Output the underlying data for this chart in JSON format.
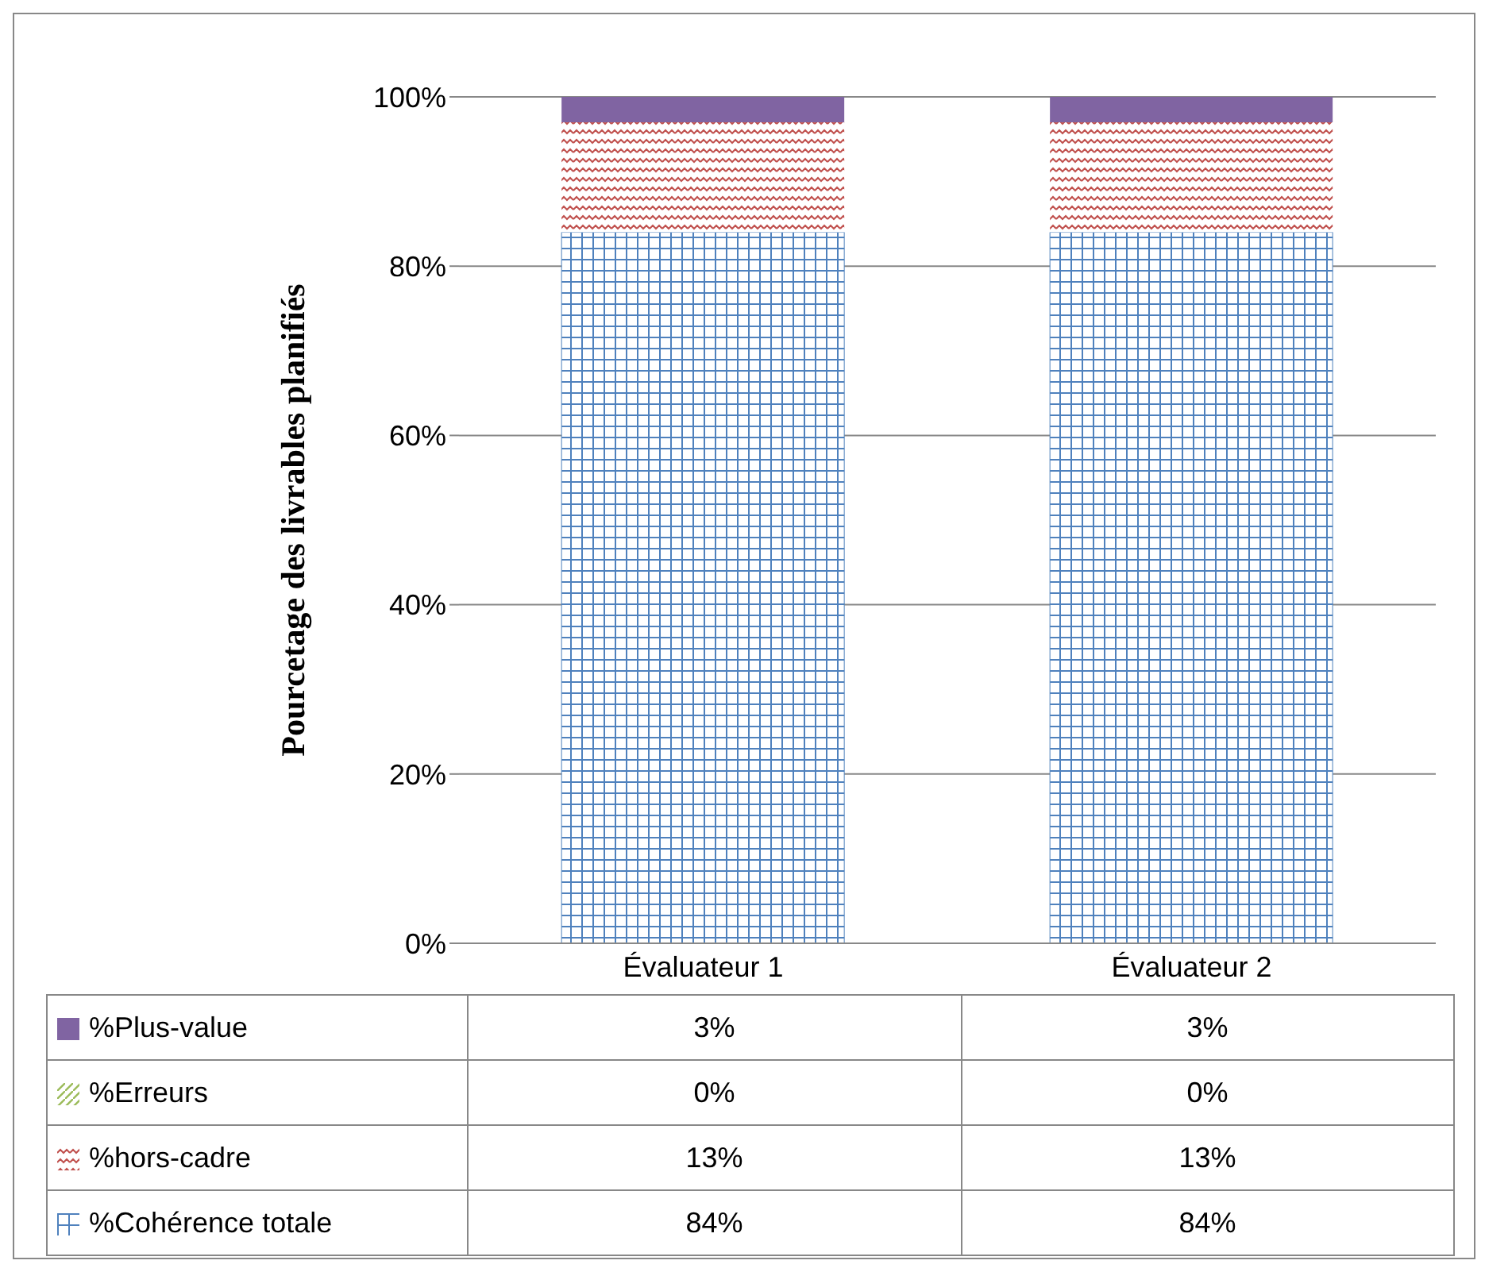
{
  "chart_data": {
    "type": "bar",
    "stacked": true,
    "ylabel": "Pourcetage des livrables planifiés",
    "categories": [
      "Évaluateur 1",
      "Évaluateur 2"
    ],
    "ylim": [
      0,
      100
    ],
    "yticks": [
      {
        "value": 0,
        "label": "0%"
      },
      {
        "value": 20,
        "label": "20%"
      },
      {
        "value": 40,
        "label": "40%"
      },
      {
        "value": 60,
        "label": "60%"
      },
      {
        "value": 80,
        "label": "80%"
      },
      {
        "value": 100,
        "label": "100%"
      }
    ],
    "grid": "y",
    "legend": "bottom",
    "series": [
      {
        "name": "%Cohérence totale",
        "color": "#4f81bd",
        "values": [
          84,
          84
        ],
        "value_labels": [
          "84%",
          "84%"
        ]
      },
      {
        "name": "%hors-cadre",
        "color": "#c0504d",
        "values": [
          13,
          13
        ],
        "value_labels": [
          "13%",
          "13%"
        ]
      },
      {
        "name": "%Erreurs",
        "color": "#9bbb59",
        "values": [
          0,
          0
        ],
        "value_labels": [
          "0%",
          "0%"
        ]
      },
      {
        "name": "%Plus-value",
        "color": "#8064a2",
        "values": [
          3,
          3
        ],
        "value_labels": [
          "3%",
          "3%"
        ]
      }
    ]
  }
}
